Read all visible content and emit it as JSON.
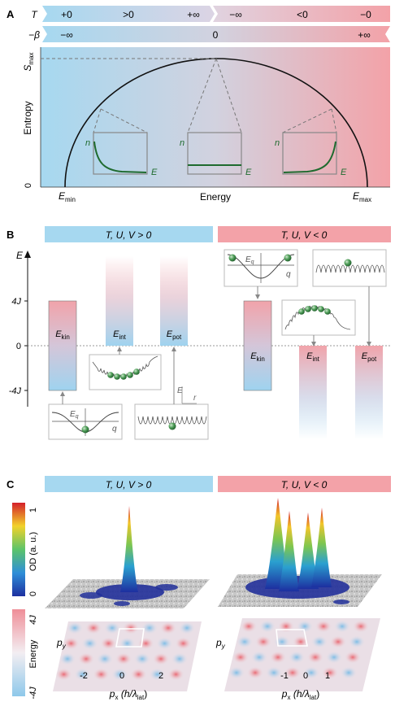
{
  "panelA": {
    "label": "A",
    "row_T": {
      "symbol": "T",
      "values": [
        "+0",
        ">0",
        "+∞",
        "−∞",
        "<0",
        "−0"
      ]
    },
    "row_beta": {
      "symbol": "−β",
      "values": [
        "−∞",
        "0",
        "+∞"
      ]
    },
    "y_axis": {
      "label": "Entropy",
      "max_tick_letter": "S",
      "max_tick_sub": "max",
      "zero_tick": "0"
    },
    "x_axis": {
      "label": "Energy",
      "min_letter": "E",
      "min_sub": "min",
      "max_letter": "E",
      "max_sub": "max"
    },
    "insets": [
      {
        "y": "n",
        "x": "E",
        "distribution": "decreasing"
      },
      {
        "y": "n",
        "x": "E",
        "distribution": "flat"
      },
      {
        "y": "n",
        "x": "E",
        "distribution": "increasing"
      }
    ],
    "colors": {
      "blue": "#a6d8f0",
      "red": "#f3a2a8",
      "curve": "#111111",
      "dist": "#1f6b2f"
    }
  },
  "panelB": {
    "label": "B",
    "header_left": "T, U, V > 0",
    "header_right": "T, U, V < 0",
    "y_axis": {
      "label": "E",
      "ticks": [
        "4J",
        "0",
        "-4J"
      ]
    },
    "bars_left": [
      {
        "letter": "E",
        "sub": "kin",
        "top": 4,
        "bottom": -4
      },
      {
        "letter": "E",
        "sub": "int",
        "top": 8,
        "bottom": 0
      },
      {
        "letter": "E",
        "sub": "pot",
        "top": 8,
        "bottom": 0
      }
    ],
    "bars_right": [
      {
        "letter": "E",
        "sub": "kin",
        "top": 4,
        "bottom": -4
      },
      {
        "letter": "E",
        "sub": "int",
        "top": 0,
        "bottom": -8
      },
      {
        "letter": "E",
        "sub": "pot",
        "top": 0,
        "bottom": -8
      }
    ],
    "dispersion_inset": {
      "y": "E",
      "y_sub": "q",
      "x": "q"
    },
    "potential_axes": {
      "y": "E",
      "x": "r"
    },
    "colors": {
      "bar_blue": "#9fd3ef",
      "bar_red": "#f1a3aa",
      "atom": "#3f8f4a"
    }
  },
  "panelC": {
    "label": "C",
    "header_left": "T, U, V > 0",
    "header_right": "T, U, V < 0",
    "od_colorbar": {
      "label": "OD (a. u.)",
      "ticks": [
        "1",
        "0"
      ]
    },
    "energy_colorbar": {
      "label": "Energy",
      "ticks": [
        "4J",
        "-4J"
      ]
    },
    "y_axis": "p",
    "y_sub": "y",
    "left_plot": {
      "x_ticks": [
        "-2",
        "0",
        "2"
      ]
    },
    "right_plot": {
      "x_ticks": [
        "-1",
        "0",
        "1"
      ]
    },
    "x_label": {
      "p": "p",
      "sub": "x",
      "rest": " (h/λ",
      "lat_sub": "lat",
      "close": ")"
    }
  }
}
